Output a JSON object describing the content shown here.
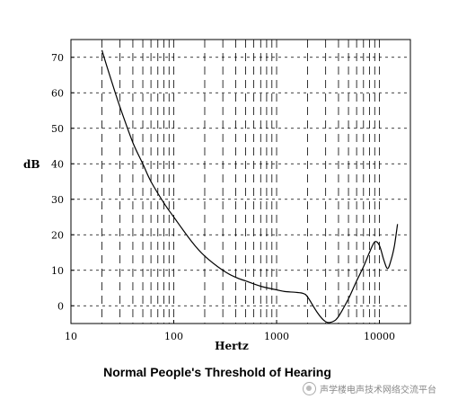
{
  "chart_data": {
    "type": "line",
    "title": "Normal People's Threshold of Hearing",
    "xlabel": "Hertz",
    "ylabel": "dB",
    "x_scale": "log",
    "xlim": [
      10,
      20000
    ],
    "ylim": [
      -5,
      75
    ],
    "grid": true,
    "x_tick_labels": [
      "10",
      "100",
      "1000",
      "10000"
    ],
    "x_ticks": [
      10,
      100,
      1000,
      10000
    ],
    "y_ticks": [
      0,
      10,
      20,
      30,
      40,
      50,
      60,
      70
    ],
    "y_tick_labels": [
      "0",
      "10",
      "20",
      "30",
      "40",
      "50",
      "60",
      "70"
    ],
    "series": [
      {
        "x": [
          20,
          25,
          30,
          40,
          50,
          60,
          80,
          100,
          150,
          200,
          300,
          400,
          500,
          700,
          1000,
          1200,
          1500,
          1800,
          2000,
          2500,
          3000,
          3500,
          4000,
          5000,
          6000,
          7000,
          8000,
          9000,
          10000,
          11000,
          12000,
          13000,
          14000,
          15000
        ],
        "y": [
          72,
          63,
          56,
          46,
          40,
          35,
          29,
          25,
          18,
          14,
          10,
          8,
          7,
          5.5,
          4.5,
          4,
          3.8,
          3.5,
          2.5,
          -2,
          -4.5,
          -4.5,
          -3,
          2,
          7,
          11,
          15,
          18,
          17,
          13,
          10.5,
          13,
          17,
          23
        ]
      }
    ]
  },
  "watermark": "声学楼电声技术网络交流平台"
}
